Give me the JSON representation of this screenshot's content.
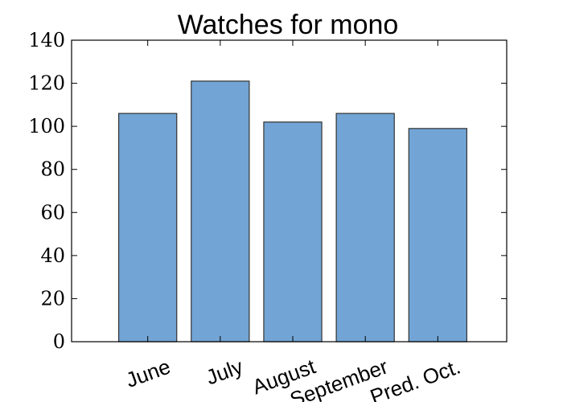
{
  "chart_data": {
    "type": "bar",
    "title": "Watches for mono",
    "xlabel": "",
    "ylabel": "",
    "categories": [
      "June",
      "July",
      "August",
      "September",
      "Pred. Oct."
    ],
    "values": [
      106,
      121,
      102,
      106,
      99
    ],
    "ylim": [
      0,
      140
    ],
    "yticks": [
      "0",
      "20",
      "40",
      "60",
      "80",
      "100",
      "120",
      "140"
    ],
    "grid": false,
    "bar_color": "#72a5d5",
    "bar_edge_color": "#333333"
  }
}
